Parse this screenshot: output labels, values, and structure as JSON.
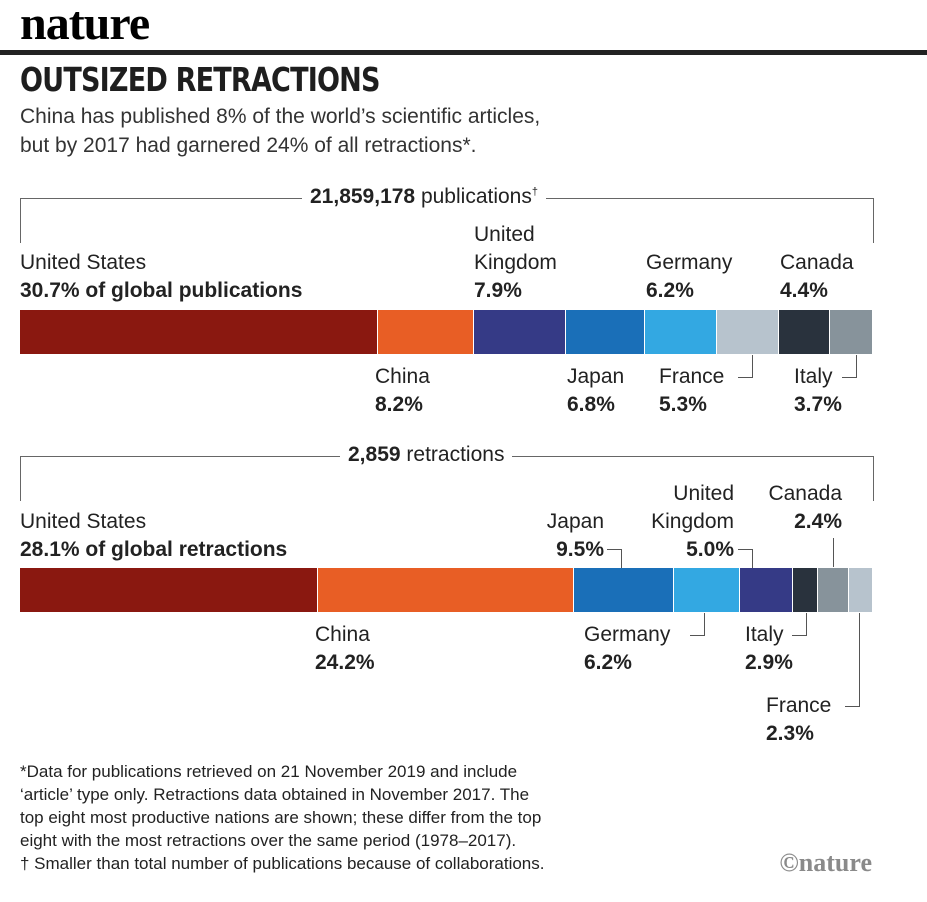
{
  "brand": "nature",
  "title": "OUTSIZED RETRACTIONS",
  "subtitle_line1": "China has published 8% of the world’s scientific articles,",
  "subtitle_line2": "but by 2017 had garnered 24% of all retractions*.",
  "colors": {
    "United States": "#8a1810",
    "China": "#e85e25",
    "United Kingdom": "#353a86",
    "Japan": "#1a6fb8",
    "Germany": "#33a8e2",
    "France": "#b7c3cd",
    "Canada": "#29323d",
    "Italy": "#87939b"
  },
  "chart_data": [
    {
      "type": "bar",
      "orientation": "stacked-horizontal",
      "total_value": "21,859,178",
      "total_label": "publications",
      "total_mark": "†",
      "categories": [
        "United States",
        "China",
        "United Kingdom",
        "Japan",
        "Germany",
        "France",
        "Canada",
        "Italy"
      ],
      "values": [
        30.7,
        8.2,
        7.9,
        6.8,
        6.2,
        5.3,
        4.4,
        3.7
      ],
      "value_labels": [
        "30.7% of global publications",
        "8.2%",
        "7.9%",
        "6.8%",
        "6.2%",
        "5.3%",
        "4.4%",
        "3.7%"
      ]
    },
    {
      "type": "bar",
      "orientation": "stacked-horizontal",
      "total_value": "2,859",
      "total_label": "retractions",
      "categories": [
        "United States",
        "China",
        "Japan",
        "Germany",
        "United Kingdom",
        "Canada",
        "Italy",
        "France"
      ],
      "values": [
        28.1,
        24.2,
        9.5,
        6.2,
        5.0,
        2.4,
        2.9,
        2.3
      ],
      "value_labels": [
        "28.1% of global retractions",
        "24.2%",
        "9.5%",
        "6.2%",
        "5.0%",
        "2.4%",
        "2.9%",
        "2.3%"
      ]
    }
  ],
  "footnote": [
    "*Data for publications retrieved on 21 November 2019 and include",
    "‘article’ type only. Retractions data obtained in November 2017. The",
    "top eight most productive nations are shown; these differ from the top",
    "eight with the most retractions over the same period (1978–2017).",
    "† Smaller than total number of publications because of collaborations."
  ],
  "copyright": "©nature"
}
